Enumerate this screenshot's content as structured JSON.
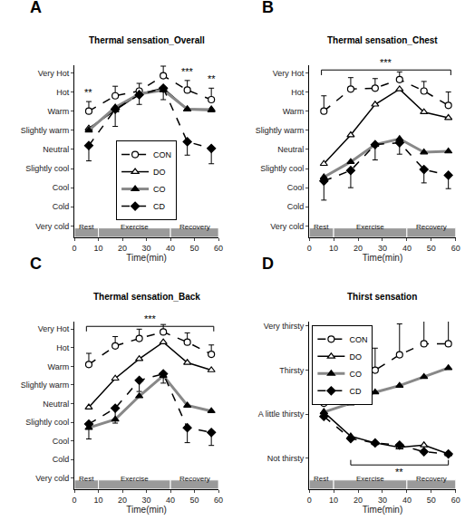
{
  "chart_data": [
    {
      "type": "line",
      "label": "A",
      "title": "Thermal sensation_Overall",
      "x_label": "Time(min)",
      "x": [
        6,
        17,
        27,
        37,
        47,
        57
      ],
      "xlim": [
        0,
        60
      ],
      "xticks": [
        0,
        10,
        20,
        30,
        40,
        50,
        60
      ],
      "ylim": [
        -4.6,
        4.4
      ],
      "yticks": [
        {
          "value": -4,
          "label": "Very cold"
        },
        {
          "value": -3,
          "label": "Cold"
        },
        {
          "value": -2,
          "label": "Cool"
        },
        {
          "value": -1,
          "label": "Slightly cool"
        },
        {
          "value": 0,
          "label": "Neutral"
        },
        {
          "value": 1,
          "label": "Slightly warm"
        },
        {
          "value": 2,
          "label": "Warm"
        },
        {
          "value": 3,
          "label": "Hot"
        },
        {
          "value": 4,
          "label": "Very Hot"
        }
      ],
      "grid": false,
      "legend": "lower center",
      "phases": [
        {
          "label": "Rest",
          "x0": 0,
          "x1": 10
        },
        {
          "label": "Exercise",
          "x0": 10,
          "x1": 40
        },
        {
          "label": "Recovery",
          "x0": 40,
          "x1": 60
        }
      ],
      "annotations": [
        {
          "text": "**",
          "x": 6,
          "y": 2.6
        },
        {
          "text": "***",
          "x": 47,
          "y": 3.7
        },
        {
          "text": "**",
          "x": 57,
          "y": 3.3
        }
      ],
      "series": [
        {
          "name": "CON",
          "color": "#000000",
          "marker": "circle-open",
          "line_style": "dashed",
          "values": [
            2.0,
            2.8,
            3.05,
            3.85,
            3.1,
            2.6
          ],
          "error_up": [
            0.5,
            0.5,
            0.4,
            0.5,
            0.5,
            0.6
          ]
        },
        {
          "name": "DO",
          "color": "#000000",
          "marker": "triangle-open",
          "line_style": "solid",
          "values": [
            1.1,
            2.05,
            2.9,
            3.2,
            2.1,
            2.1
          ]
        },
        {
          "name": "CO",
          "color": "#888888",
          "marker": "triangle",
          "line_style": "thick",
          "values": [
            1.0,
            2.2,
            2.9,
            3.1,
            2.1,
            2.05
          ]
        },
        {
          "name": "CD",
          "color": "#000000",
          "marker": "diamond",
          "line_style": "dashed",
          "values": [
            0.2,
            2.1,
            2.85,
            3.2,
            0.4,
            0.05
          ],
          "error_down": [
            0.8,
            0.9,
            0.5,
            0.6,
            0.7,
            0.8
          ]
        }
      ]
    },
    {
      "type": "line",
      "label": "B",
      "title": "Thermal sensation_Chest",
      "x_label": "Time(min)",
      "x": [
        6,
        17,
        27,
        37,
        47,
        57
      ],
      "xlim": [
        0,
        60
      ],
      "xticks": [
        0,
        10,
        20,
        30,
        40,
        50,
        60
      ],
      "ylim": [
        -4.6,
        4.4
      ],
      "yticks": [
        {
          "value": -4,
          "label": "Very cold"
        },
        {
          "value": -3,
          "label": "Cold"
        },
        {
          "value": -2,
          "label": "Cool"
        },
        {
          "value": -1,
          "label": "Slightly cool"
        },
        {
          "value": 0,
          "label": "Neutral"
        },
        {
          "value": 1,
          "label": "Slightly warm"
        },
        {
          "value": 2,
          "label": "Warm"
        },
        {
          "value": 3,
          "label": "Hot"
        },
        {
          "value": 4,
          "label": "Very Hot"
        }
      ],
      "grid": false,
      "phases": [
        {
          "label": "Rest",
          "x0": 0,
          "x1": 10
        },
        {
          "label": "Exercise",
          "x0": 10,
          "x1": 40
        },
        {
          "label": "Recovery",
          "x0": 40,
          "x1": 60
        }
      ],
      "brackets": [
        {
          "x0": 5,
          "x1": 58,
          "y": 4.15,
          "text": "***"
        }
      ],
      "series": [
        {
          "name": "CON",
          "color": "#000000",
          "marker": "circle-open",
          "line_style": "dashed",
          "values": [
            2.0,
            3.15,
            3.2,
            3.65,
            3.05,
            2.3
          ],
          "error_up": [
            0.8,
            0.6,
            0.5,
            0.4,
            0.5,
            0.7
          ]
        },
        {
          "name": "DO",
          "color": "#000000",
          "marker": "triangle-open",
          "line_style": "solid",
          "values": [
            -0.75,
            0.75,
            2.35,
            3.15,
            1.95,
            1.65
          ]
        },
        {
          "name": "CO",
          "color": "#888888",
          "marker": "triangle",
          "line_style": "thick",
          "values": [
            -1.45,
            -0.65,
            0.25,
            0.55,
            -0.15,
            -0.1
          ]
        },
        {
          "name": "CD",
          "color": "#000000",
          "marker": "diamond",
          "line_style": "dashed",
          "values": [
            -1.65,
            -1.1,
            0.25,
            0.35,
            -1.05,
            -1.35
          ],
          "error_down": [
            1.0,
            0.9,
            0.8,
            0.6,
            0.7,
            0.7
          ]
        }
      ]
    },
    {
      "type": "line",
      "label": "C",
      "title": "Thermal sensation_Back",
      "x_label": "Time(min)",
      "x": [
        6,
        17,
        27,
        37,
        47,
        57
      ],
      "xlim": [
        0,
        60
      ],
      "xticks": [
        0,
        10,
        20,
        30,
        40,
        50,
        60
      ],
      "ylim": [
        -4.6,
        4.4
      ],
      "yticks": [
        {
          "value": -4,
          "label": "Very cold"
        },
        {
          "value": -3,
          "label": "Cold"
        },
        {
          "value": -2,
          "label": "Cool"
        },
        {
          "value": -1,
          "label": "Slightly cool"
        },
        {
          "value": 0,
          "label": "Neutral"
        },
        {
          "value": 1,
          "label": "Slightly warm"
        },
        {
          "value": 2,
          "label": "Warm"
        },
        {
          "value": 3,
          "label": "Hot"
        },
        {
          "value": 4,
          "label": "Very Hot"
        }
      ],
      "grid": false,
      "phases": [
        {
          "label": "Rest",
          "x0": 0,
          "x1": 10
        },
        {
          "label": "Exercise",
          "x0": 10,
          "x1": 40
        },
        {
          "label": "Recovery",
          "x0": 40,
          "x1": 60
        }
      ],
      "brackets": [
        {
          "x0": 5,
          "x1": 58,
          "y": 4.15,
          "text": "***"
        }
      ],
      "series": [
        {
          "name": "CON",
          "color": "#000000",
          "marker": "circle-open",
          "line_style": "dashed",
          "values": [
            2.1,
            3.1,
            3.5,
            3.85,
            3.3,
            2.65
          ],
          "error_up": [
            0.6,
            0.5,
            0.5,
            0.4,
            0.5,
            0.5
          ]
        },
        {
          "name": "DO",
          "color": "#000000",
          "marker": "triangle-open",
          "line_style": "solid",
          "values": [
            -0.2,
            1.35,
            2.4,
            3.3,
            2.2,
            1.8
          ]
        },
        {
          "name": "CO",
          "color": "#888888",
          "marker": "triangle",
          "line_style": "thick",
          "values": [
            -1.3,
            -0.85,
            0.4,
            1.5,
            -0.1,
            -0.4
          ]
        },
        {
          "name": "CD",
          "color": "#000000",
          "marker": "diamond",
          "line_style": "dashed",
          "values": [
            -1.1,
            -0.25,
            1.25,
            1.6,
            -1.3,
            -1.55
          ],
          "error_down": [
            0.8,
            0.8,
            0.6,
            0.5,
            0.8,
            0.7
          ]
        }
      ]
    },
    {
      "type": "line",
      "label": "D",
      "title": "Thirst sensation",
      "x_label": "Time(min)",
      "x": [
        6,
        17,
        27,
        37,
        47,
        57
      ],
      "xlim": [
        0,
        60
      ],
      "xticks": [
        0,
        10,
        20,
        30,
        40,
        50,
        60
      ],
      "ylim": [
        -0.7,
        3.1
      ],
      "yticks": [
        {
          "value": 0,
          "label": "Not thirsty"
        },
        {
          "value": 1,
          "label": "A little thirsty"
        },
        {
          "value": 2,
          "label": "Thirsty"
        },
        {
          "value": 3,
          "label": "Very thirsty"
        }
      ],
      "grid": false,
      "legend": "upper left",
      "phases": [
        {
          "label": "Rest",
          "x0": 0,
          "x1": 10
        },
        {
          "label": "Exercise",
          "x0": 10,
          "x1": 40
        },
        {
          "label": "Recovery",
          "x0": 40,
          "x1": 60
        }
      ],
      "brackets": [
        {
          "x0": 17,
          "x1": 57,
          "y": -0.15,
          "text": "**"
        }
      ],
      "series": [
        {
          "name": "CON",
          "color": "#000000",
          "marker": "circle-open",
          "line_style": "dashed",
          "values": [
            1.25,
            1.5,
            2.0,
            2.35,
            2.6,
            2.6
          ],
          "error_up": [
            0.15,
            0.25,
            0.5,
            0.7,
            0.8,
            0.8
          ]
        },
        {
          "name": "DO",
          "color": "#000000",
          "marker": "triangle-open",
          "line_style": "solid",
          "values": [
            1.05,
            0.5,
            0.35,
            0.25,
            0.3,
            0.1
          ]
        },
        {
          "name": "CO",
          "color": "#888888",
          "marker": "triangle",
          "line_style": "thick",
          "values": [
            1.05,
            1.25,
            1.5,
            1.65,
            1.85,
            2.05
          ]
        },
        {
          "name": "CD",
          "color": "#000000",
          "marker": "diamond",
          "line_style": "dashed",
          "values": [
            0.95,
            0.45,
            0.35,
            0.3,
            0.15,
            0.1
          ]
        }
      ]
    }
  ]
}
